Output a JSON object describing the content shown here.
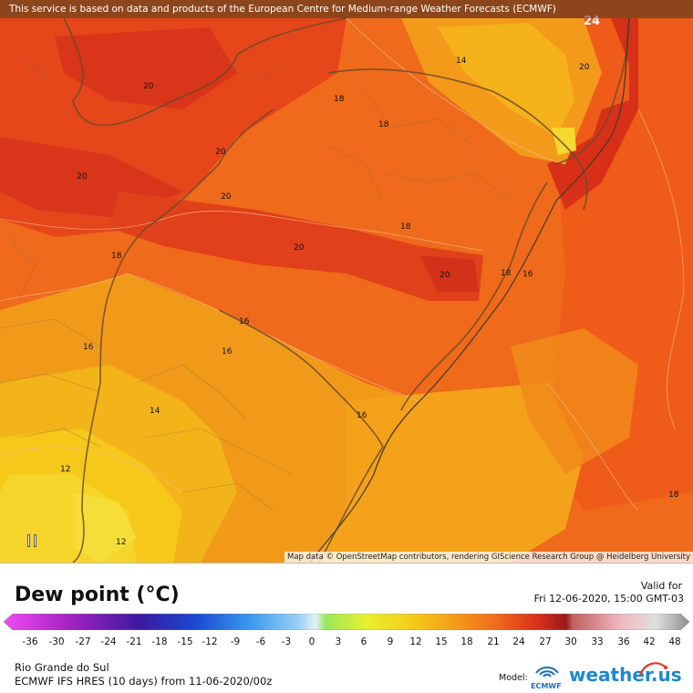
{
  "banner": "This service is based on data and products of the European Centre for Medium-range Weather Forecasts (ECMWF)",
  "attribution": "Map data © OpenStreetMap contributors, rendering GIScience Research Group @ Heidelberg University",
  "contour_labels": [
    "24",
    "20",
    "14",
    "20",
    "18",
    "18",
    "20",
    "20",
    "20",
    "18",
    "20",
    "18",
    "16",
    "18",
    "20",
    "16",
    "16",
    "16",
    "14",
    "16",
    "12",
    "12",
    "18"
  ],
  "controls": {
    "pause_icon": "pause-icon"
  },
  "legend": {
    "title": "Dew point (°C)",
    "valid_label": "Valid for",
    "valid_time": "Fri 12-06-2020, 15:00 GMT-03",
    "scale_values": [
      "-36",
      "-30",
      "-27",
      "-24",
      "-21",
      "-18",
      "-15",
      "-12",
      "-9",
      "-6",
      "-3",
      "0",
      "3",
      "6",
      "9",
      "12",
      "15",
      "18",
      "21",
      "24",
      "27",
      "30",
      "33",
      "36",
      "42",
      "48"
    ],
    "region": "Rio Grande do Sul",
    "model_run": "ECMWF IFS HRES (10 days) from 11-06-2020/00z",
    "model_label": "Model:",
    "ecmwf_logo_text": "ECMWF",
    "brand": "weather.us",
    "colors": {
      "deep_red": "#c8281a",
      "red_orange": "#e8441a",
      "orange": "#f27a1a",
      "amber": "#f5a21a",
      "yellow": "#f2c91a",
      "light_yellow": "#f5dc30"
    }
  }
}
